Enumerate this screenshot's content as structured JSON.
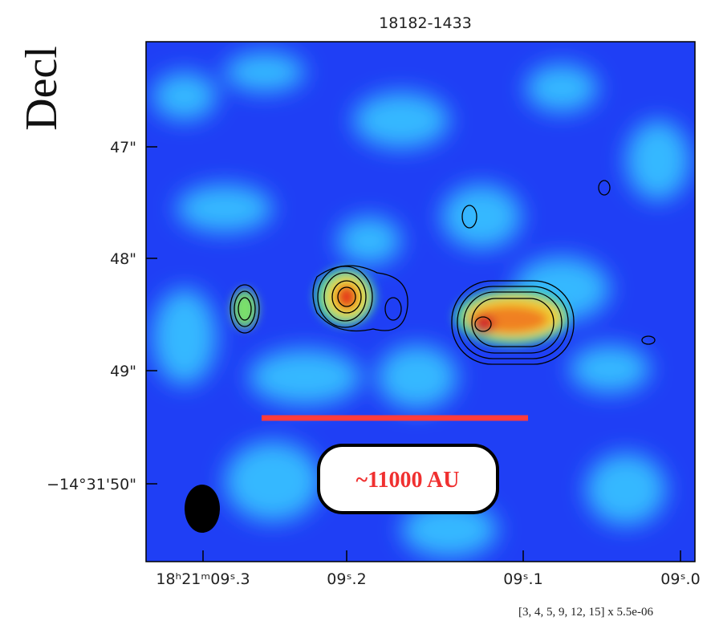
{
  "title": "18182-1433",
  "y_axis_label": "Decl",
  "y_ticks": [
    "47\"",
    "48\"",
    "49\"",
    "−14°31'50\""
  ],
  "x_ticks": [
    "18ʰ21ᵐ09ˢ.3",
    "09ˢ.2",
    "09ˢ.1",
    "09ˢ.0"
  ],
  "scale_bar_label": "~11000 AU",
  "contour_note": "[3, 4, 5, 9, 12, 15] x 5.5e-06"
}
